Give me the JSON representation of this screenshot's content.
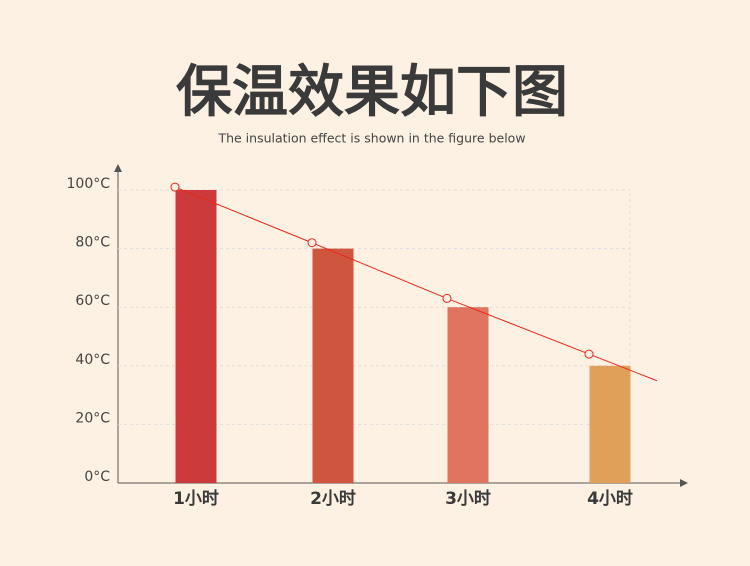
{
  "chart_data": {
    "type": "bar",
    "title": "保温效果如下图",
    "subtitle": "The insulation effect is shown in the figure below",
    "categories": [
      "1小时",
      "2小时",
      "3小时",
      "4小时"
    ],
    "values": [
      100,
      80,
      60,
      40
    ],
    "colors": [
      "#cc3a3c",
      "#cf553e",
      "#e07460",
      "#e0a05a"
    ],
    "line": {
      "color": "#e8281c",
      "values": [
        101,
        82,
        63,
        44
      ]
    },
    "ylim": [
      0,
      100
    ],
    "yticks": [
      {
        "value": 0,
        "label": "0°C"
      },
      {
        "value": 20,
        "label": "20°C"
      },
      {
        "value": 40,
        "label": "40°C"
      },
      {
        "value": 60,
        "label": "60°C"
      },
      {
        "value": 80,
        "label": "80°C"
      },
      {
        "value": 100,
        "label": "100°C"
      }
    ],
    "grid": true
  }
}
